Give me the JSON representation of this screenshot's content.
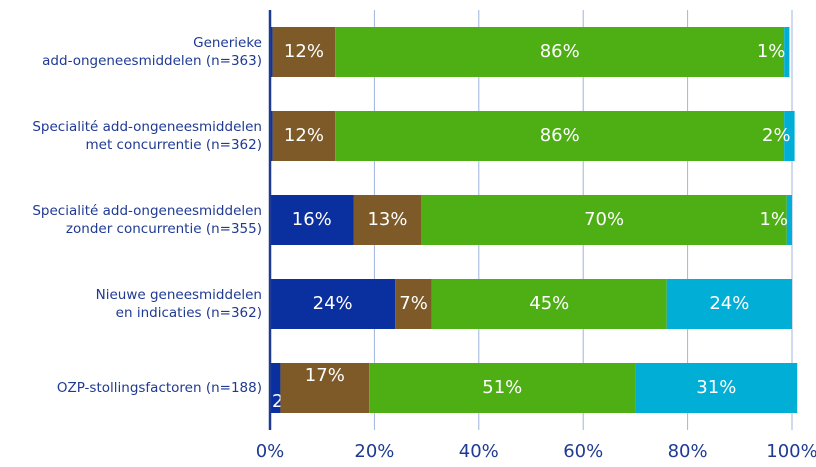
{
  "chart_data": {
    "type": "stacked-bar-horizontal",
    "categories": [
      [
        "Generieke",
        "add-ongeneesmiddelen (n=363)"
      ],
      [
        "Specialité add-ongeneesmiddelen",
        "met concurrentie (n=362)"
      ],
      [
        "Specialité add-ongeneesmiddelen",
        "zonder concurrentie (n=355)"
      ],
      [
        "Nieuwe geneesmiddelen",
        "en indicaties (n=362)"
      ],
      [
        "OZP-stollingsfactoren (n=188)"
      ]
    ],
    "series": [
      {
        "color": "#0a2f9e",
        "values": [
          0.5,
          0.5,
          16,
          24,
          2
        ],
        "value_labels": [
          null,
          null,
          "16%",
          "24%",
          "2%"
        ]
      },
      {
        "color": "#7d5a28",
        "values": [
          12,
          12,
          13,
          7,
          17
        ],
        "value_labels": [
          "12%",
          "12%",
          "13%",
          "7%",
          "17%"
        ]
      },
      {
        "color": "#4eaf14",
        "values": [
          86,
          86,
          70,
          45,
          51
        ],
        "value_labels": [
          "86%",
          "86%",
          "70%",
          "45%",
          "51%"
        ]
      },
      {
        "color": "#00aed6",
        "values": [
          1,
          2,
          1,
          24,
          31
        ],
        "value_labels": [
          "1%",
          "2%",
          "1%",
          "24%",
          "31%"
        ]
      }
    ],
    "xlim": [
      0,
      100
    ],
    "xticks": [
      {
        "value": 0,
        "label": "0%"
      },
      {
        "value": 20,
        "label": "20%"
      },
      {
        "value": 40,
        "label": "40%"
      },
      {
        "value": 60,
        "label": "60%"
      },
      {
        "value": 80,
        "label": "80%"
      },
      {
        "value": 100,
        "label": "100%"
      }
    ],
    "grid": true
  }
}
